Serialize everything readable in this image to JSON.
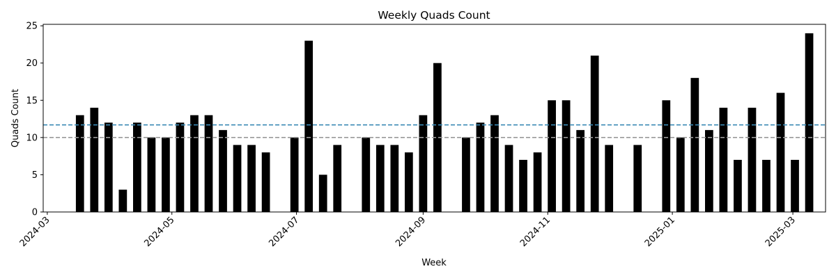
{
  "chart_data": {
    "type": "bar",
    "title": "Weekly Quads Count",
    "xlabel": "Week",
    "ylabel": "Quads Count",
    "x_start": "2024-02-28",
    "x_end": "2025-03-17",
    "ylim": [
      0,
      25.2
    ],
    "yticks": [
      0,
      5,
      10,
      15,
      20,
      25
    ],
    "xticks": [
      {
        "date": "2024-03-01",
        "label": "2024-03"
      },
      {
        "date": "2024-05-01",
        "label": "2024-05"
      },
      {
        "date": "2024-07-01",
        "label": "2024-07"
      },
      {
        "date": "2024-09-01",
        "label": "2024-09"
      },
      {
        "date": "2024-11-01",
        "label": "2024-11"
      },
      {
        "date": "2025-01-01",
        "label": "2025-01"
      },
      {
        "date": "2025-03-01",
        "label": "2025-03"
      }
    ],
    "bar_color": "#000000",
    "grid": false,
    "reference_lines": [
      {
        "value": 11.7,
        "color": "#3b8ab5",
        "style": "dashed"
      },
      {
        "value": 10,
        "color": "#999999",
        "style": "dashed"
      }
    ],
    "weeks": [
      "2024-03-17",
      "2024-03-24",
      "2024-03-31",
      "2024-04-07",
      "2024-04-14",
      "2024-04-21",
      "2024-04-28",
      "2024-05-05",
      "2024-05-12",
      "2024-05-19",
      "2024-05-26",
      "2024-06-02",
      "2024-06-09",
      "2024-06-16",
      "2024-06-30",
      "2024-07-07",
      "2024-07-14",
      "2024-07-21",
      "2024-08-04",
      "2024-08-11",
      "2024-08-18",
      "2024-08-25",
      "2024-09-01",
      "2024-09-08",
      "2024-09-22",
      "2024-09-29",
      "2024-10-06",
      "2024-10-13",
      "2024-10-20",
      "2024-10-27",
      "2024-11-03",
      "2024-11-10",
      "2024-11-17",
      "2024-11-24",
      "2024-12-01",
      "2024-12-15",
      "2024-12-29",
      "2025-01-05",
      "2025-01-12",
      "2025-01-19",
      "2025-01-26",
      "2025-02-02",
      "2025-02-09",
      "2025-02-16",
      "2025-02-23",
      "2025-03-02",
      "2025-03-09"
    ],
    "values": [
      13,
      14,
      12,
      3,
      12,
      10,
      10,
      12,
      13,
      13,
      11,
      9,
      9,
      8,
      10,
      23,
      5,
      9,
      10,
      9,
      9,
      8,
      13,
      20,
      10,
      12,
      13,
      9,
      7,
      8,
      15,
      15,
      11,
      21,
      9,
      9,
      15,
      10,
      18,
      11,
      14,
      7,
      14,
      7,
      16,
      7,
      24
    ]
  }
}
